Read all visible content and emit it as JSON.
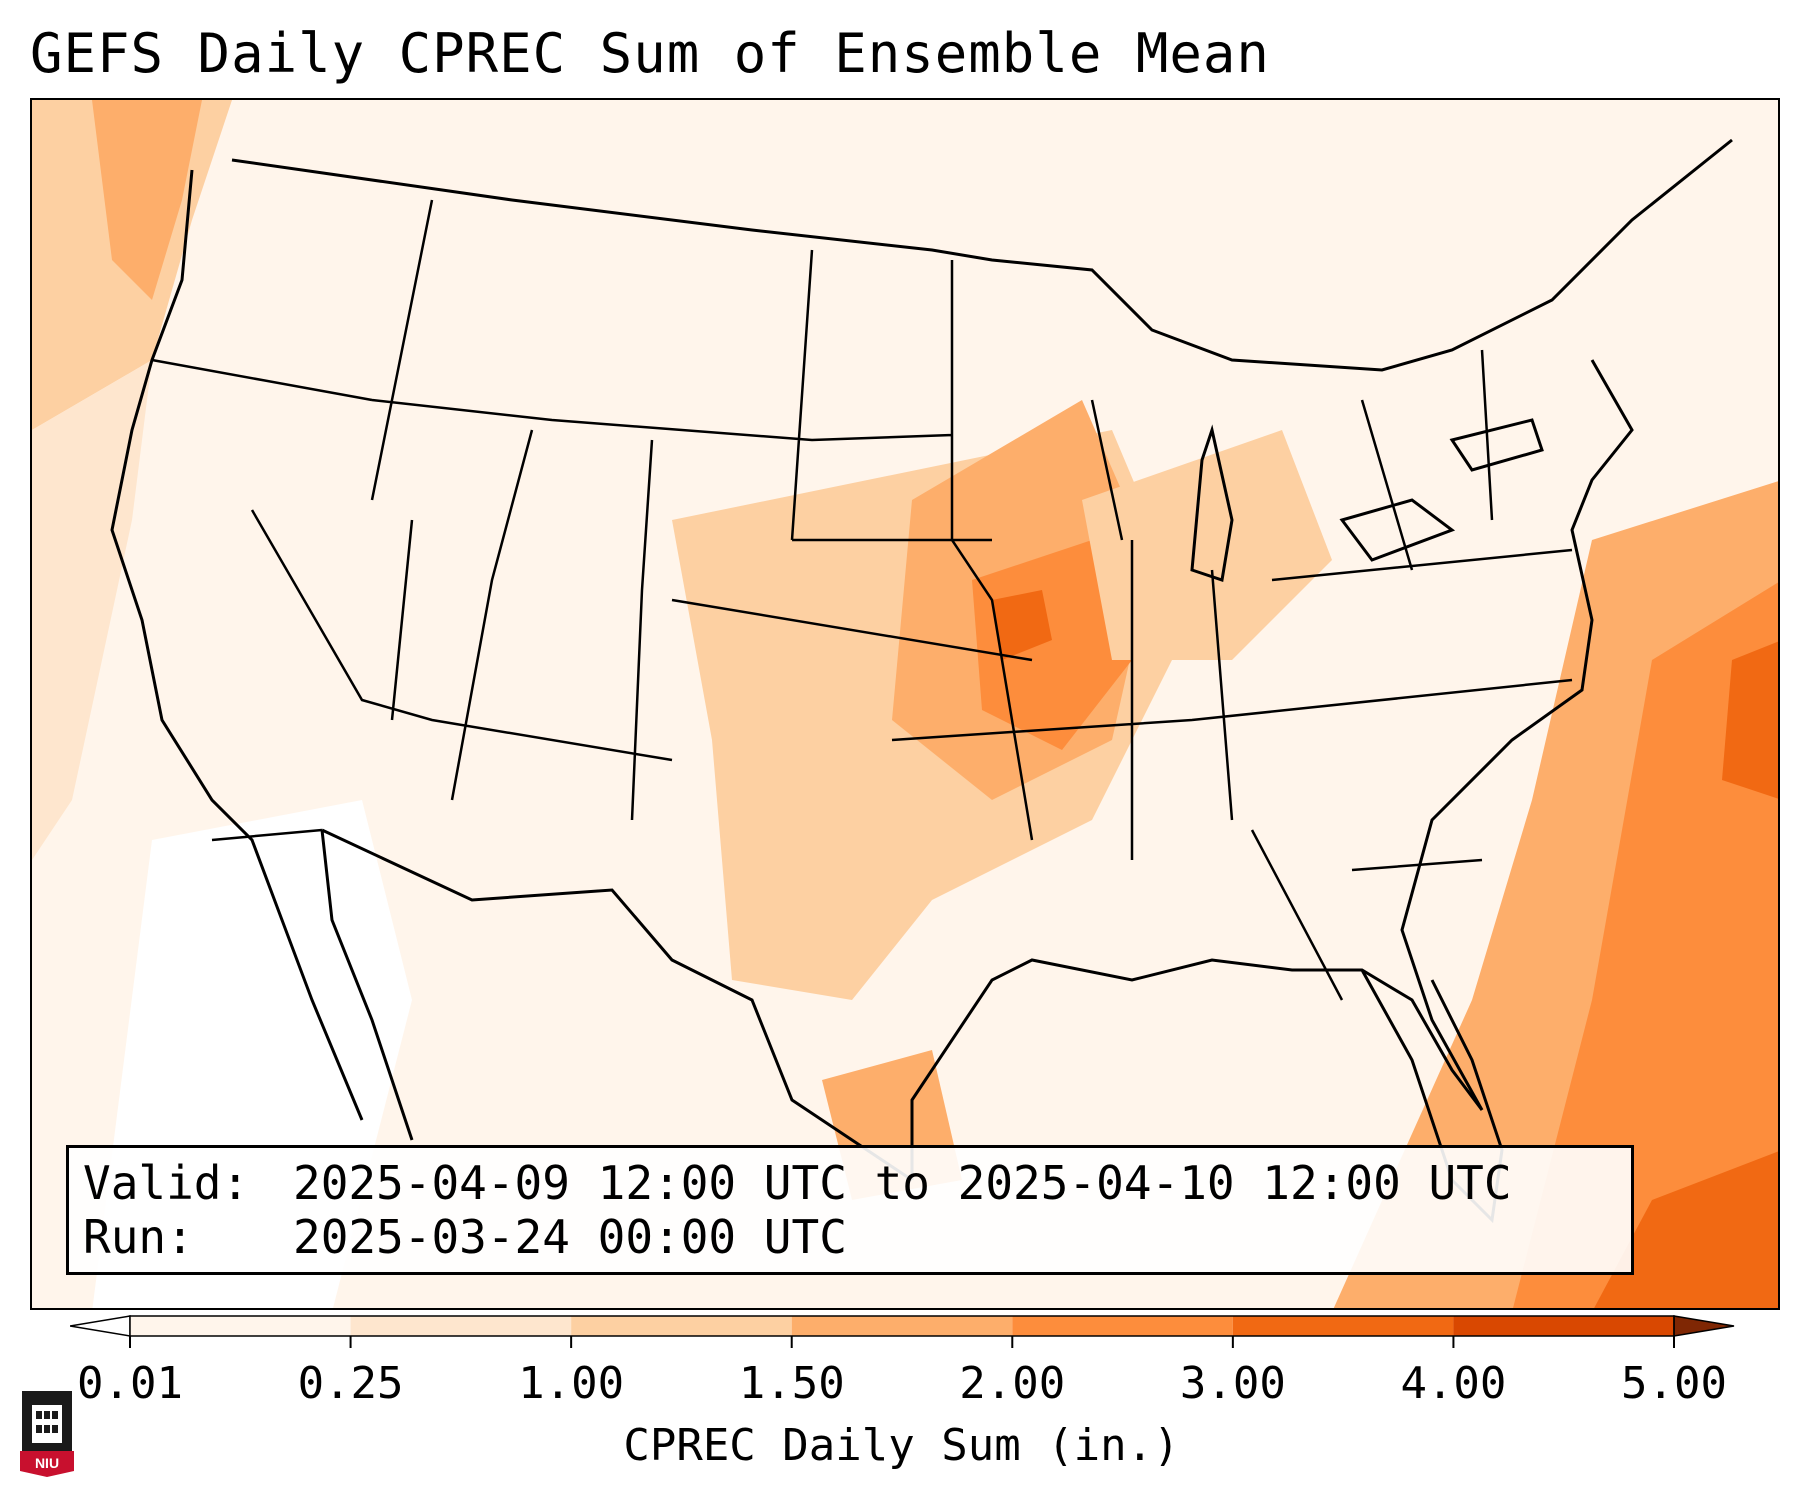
{
  "title": "GEFS Daily CPREC Sum of Ensemble Mean",
  "info": {
    "valid_label": "Valid:",
    "valid_value": "2025-04-09 12:00 UTC to 2025-04-10 12:00 UTC",
    "run_label": "Run:",
    "run_value": "2025-03-24 00:00 UTC"
  },
  "colorbar": {
    "title": "CPREC Daily Sum (in.)",
    "ticks": [
      "0.01",
      "0.25",
      "1.00",
      "1.50",
      "2.00",
      "3.00",
      "4.00",
      "5.00"
    ],
    "colors": [
      "#fff5eb",
      "#fee6ce",
      "#fdd0a2",
      "#fdae6b",
      "#fd8d3c",
      "#f16913",
      "#d94801",
      "#a63603"
    ],
    "under_color": "#ffffff",
    "over_color": "#7f2704",
    "extend": "both"
  },
  "logo": {
    "text": "NIU",
    "colors": {
      "shield": "#1a1a1a",
      "banner": "#c8102e"
    }
  }
}
